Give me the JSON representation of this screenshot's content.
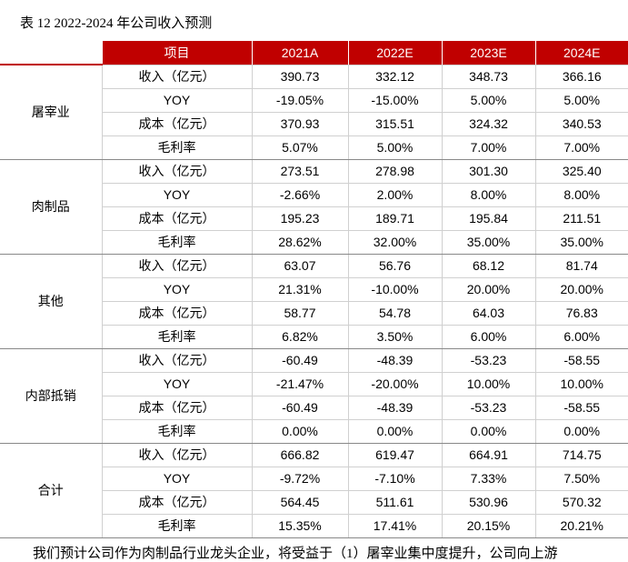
{
  "caption": "表 12 2022-2024 年公司收入预测",
  "table": {
    "header": [
      "项目",
      "2021A",
      "2022E",
      "2023E",
      "2024E"
    ],
    "groups": [
      {
        "name": "屠宰业",
        "rows": [
          [
            "收入（亿元）",
            "390.73",
            "332.12",
            "348.73",
            "366.16"
          ],
          [
            "YOY",
            "-19.05%",
            "-15.00%",
            "5.00%",
            "5.00%"
          ],
          [
            "成本（亿元）",
            "370.93",
            "315.51",
            "324.32",
            "340.53"
          ],
          [
            "毛利率",
            "5.07%",
            "5.00%",
            "7.00%",
            "7.00%"
          ]
        ]
      },
      {
        "name": "肉制品",
        "rows": [
          [
            "收入（亿元）",
            "273.51",
            "278.98",
            "301.30",
            "325.40"
          ],
          [
            "YOY",
            "-2.66%",
            "2.00%",
            "8.00%",
            "8.00%"
          ],
          [
            "成本（亿元）",
            "195.23",
            "189.71",
            "195.84",
            "211.51"
          ],
          [
            "毛利率",
            "28.62%",
            "32.00%",
            "35.00%",
            "35.00%"
          ]
        ]
      },
      {
        "name": "其他",
        "rows": [
          [
            "收入（亿元）",
            "63.07",
            "56.76",
            "68.12",
            "81.74"
          ],
          [
            "YOY",
            "21.31%",
            "-10.00%",
            "20.00%",
            "20.00%"
          ],
          [
            "成本（亿元）",
            "58.77",
            "54.78",
            "64.03",
            "76.83"
          ],
          [
            "毛利率",
            "6.82%",
            "3.50%",
            "6.00%",
            "6.00%"
          ]
        ]
      },
      {
        "name": "内部抵销",
        "rows": [
          [
            "收入（亿元）",
            "-60.49",
            "-48.39",
            "-53.23",
            "-58.55"
          ],
          [
            "YOY",
            "-21.47%",
            "-20.00%",
            "10.00%",
            "10.00%"
          ],
          [
            "成本（亿元）",
            "-60.49",
            "-48.39",
            "-53.23",
            "-58.55"
          ],
          [
            "毛利率",
            "0.00%",
            "0.00%",
            "0.00%",
            "0.00%"
          ]
        ]
      },
      {
        "name": "合计",
        "rows": [
          [
            "收入（亿元）",
            "666.82",
            "619.47",
            "664.91",
            "714.75"
          ],
          [
            "YOY",
            "-9.72%",
            "-7.10%",
            "7.33%",
            "7.50%"
          ],
          [
            "成本（亿元）",
            "564.45",
            "511.61",
            "530.96",
            "570.32"
          ],
          [
            "毛利率",
            "15.35%",
            "17.41%",
            "20.15%",
            "20.21%"
          ]
        ]
      }
    ]
  },
  "body_text": "我们预计公司作为肉制品行业龙头企业，将受益于（1）屠宰业集中度提升，公司向上游"
}
